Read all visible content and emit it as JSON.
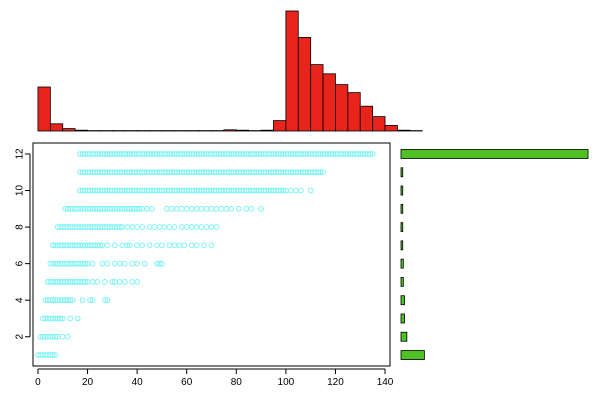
{
  "chart_data": [
    {
      "id": "scatter",
      "type": "scatter",
      "title": "",
      "xlabel": "",
      "ylabel": "",
      "xlim": [
        -2,
        142
      ],
      "ylim": [
        0.4,
        12.6
      ],
      "x_ticks": [
        "0",
        "20",
        "40",
        "60",
        "80",
        "100",
        "120",
        "140"
      ],
      "y_ticks": [
        "2",
        "4",
        "6",
        "8",
        "10",
        "12"
      ],
      "point_color": "#7ff3f3",
      "rows": [
        {
          "y": 1,
          "x_min": 0,
          "x_max": 7,
          "dense_max": 7,
          "outliers": []
        },
        {
          "y": 2,
          "x_min": 1,
          "x_max": 12,
          "dense_max": 8,
          "outliers": [
            10,
            12
          ]
        },
        {
          "y": 3,
          "x_min": 2,
          "x_max": 16,
          "dense_max": 10,
          "outliers": [
            13,
            16
          ]
        },
        {
          "y": 4,
          "x_min": 3,
          "x_max": 28,
          "dense_max": 14,
          "outliers": [
            18,
            21,
            22,
            27,
            28
          ]
        },
        {
          "y": 5,
          "x_min": 4,
          "x_max": 40,
          "dense_max": 20,
          "outliers": [
            22,
            24,
            27,
            30,
            31,
            33,
            35,
            38,
            40
          ]
        },
        {
          "y": 6,
          "x_min": 5,
          "x_max": 50,
          "dense_max": 20,
          "outliers": [
            22,
            26,
            28,
            31,
            33,
            35,
            38,
            40,
            43,
            48,
            49,
            50
          ]
        },
        {
          "y": 7,
          "x_min": 6,
          "x_max": 70,
          "dense_max": 26,
          "outliers": [
            28,
            31,
            34,
            36,
            37,
            40,
            42,
            45,
            48,
            50,
            53,
            55,
            57,
            59,
            62,
            64,
            67,
            70
          ]
        },
        {
          "y": 8,
          "x_min": 8,
          "x_max": 72,
          "dense_max": 34,
          "outliers": [
            36,
            38,
            40,
            42,
            45,
            47,
            49,
            51,
            53,
            55,
            58,
            60,
            62,
            64,
            66,
            68,
            70,
            72
          ]
        },
        {
          "y": 9,
          "x_min": 11,
          "x_max": 90,
          "dense_max": 42,
          "outliers": [
            44,
            46,
            52,
            54,
            56,
            58,
            60,
            62,
            64,
            66,
            68,
            70,
            72,
            74,
            76,
            78,
            81,
            84,
            86,
            90
          ]
        },
        {
          "y": 10,
          "x_min": 17,
          "x_max": 110,
          "dense_max": 100,
          "outliers": [
            102,
            104,
            106,
            110
          ]
        },
        {
          "y": 11,
          "x_min": 17,
          "x_max": 115,
          "dense_max": 115,
          "outliers": []
        },
        {
          "y": 12,
          "x_min": 17,
          "x_max": 135,
          "dense_max": 135,
          "outliers": [
            28,
            33,
            35,
            37
          ]
        }
      ]
    },
    {
      "id": "top-histogram",
      "type": "bar",
      "title": "",
      "bar_color": "#e8241c",
      "bin_width": 5,
      "x_start": 0,
      "values": [
        110,
        18,
        6,
        2,
        1,
        1,
        1,
        1,
        1,
        1,
        1,
        1,
        1,
        1,
        1,
        3,
        2,
        1,
        2,
        26,
        300,
        234,
        166,
        143,
        116,
        96,
        62,
        36,
        14,
        2,
        1
      ],
      "ylim": [
        0,
        300
      ]
    },
    {
      "id": "right-histogram",
      "type": "bar",
      "orientation": "horizontal",
      "title": "",
      "bar_color": "#4fc124",
      "categories": [
        1,
        2,
        3,
        4,
        5,
        6,
        7,
        8,
        9,
        10,
        11,
        12
      ],
      "values": [
        40,
        10,
        6,
        6,
        4,
        4,
        3,
        3,
        3,
        3,
        3,
        320
      ],
      "xlim": [
        0,
        320
      ]
    }
  ]
}
